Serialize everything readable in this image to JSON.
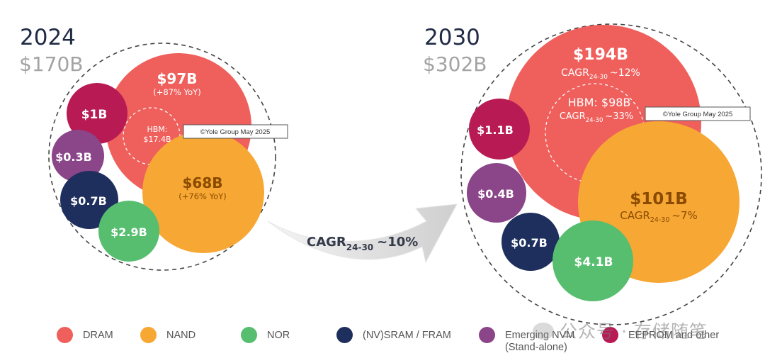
{
  "chart_data": {
    "type": "bubble-comparison",
    "title": "",
    "source_note": "©Yole Group May 2025",
    "panels": [
      {
        "year": "2024",
        "total": "$170B",
        "segments": [
          {
            "category": "DRAM",
            "value": 97,
            "label": "$97B",
            "sub": "(+87% YoY)"
          },
          {
            "category": "HBM",
            "value": 17.4,
            "label_line1": "HBM:",
            "label_line2": "$17.4B"
          },
          {
            "category": "NAND",
            "value": 68,
            "label": "$68B",
            "sub": "(+76% YoY)"
          },
          {
            "category": "EEPROM and other",
            "value": 1,
            "label": "$1B"
          },
          {
            "category": "Emerging NVM (Stand-alone)",
            "value": 0.3,
            "label": "$0.3B"
          },
          {
            "category": "(NV)SRAM / FRAM",
            "value": 0.7,
            "label": "$0.7B"
          },
          {
            "category": "NOR",
            "value": 2.9,
            "label": "$2.9B"
          }
        ]
      },
      {
        "year": "2030",
        "total": "$302B",
        "segments": [
          {
            "category": "DRAM",
            "value": 194,
            "label": "$194B",
            "sub_prefix": "CAGR",
            "sub_suffix": "~12%"
          },
          {
            "category": "HBM",
            "value": 98,
            "label_line1": "HBM: $98B",
            "sub_prefix": "CAGR",
            "sub_suffix": "~33%"
          },
          {
            "category": "NAND",
            "value": 101,
            "label": "$101B",
            "sub_prefix": "CAGR",
            "sub_suffix": "~7%"
          },
          {
            "category": "EEPROM and other",
            "value": 1.1,
            "label": "$1.1B"
          },
          {
            "category": "Emerging NVM (Stand-alone)",
            "value": 0.4,
            "label": "$0.4B"
          },
          {
            "category": "(NV)SRAM / FRAM",
            "value": 0.7,
            "label": "$0.7B"
          },
          {
            "category": "NOR",
            "value": 4.1,
            "label": "$4.1B"
          }
        ]
      }
    ],
    "arrow": {
      "prefix": "CAGR",
      "subscript": "24-30",
      "suffix": "~10%"
    },
    "cagr_subscript": "24-30",
    "legend": [
      {
        "label": "DRAM",
        "color": "#EF5F5C"
      },
      {
        "label": "NAND",
        "color": "#F7A733"
      },
      {
        "label": "NOR",
        "color": "#56BE6E"
      },
      {
        "label": "(NV)SRAM / FRAM",
        "color": "#1E2F5E"
      },
      {
        "label_line1": "Emerging NVM",
        "label_line2": "(Stand-alone)",
        "color": "#8B4589"
      },
      {
        "label": "EEPROM and other",
        "color": "#B81A53"
      }
    ]
  },
  "watermark": "公众号 · 存储随笔"
}
